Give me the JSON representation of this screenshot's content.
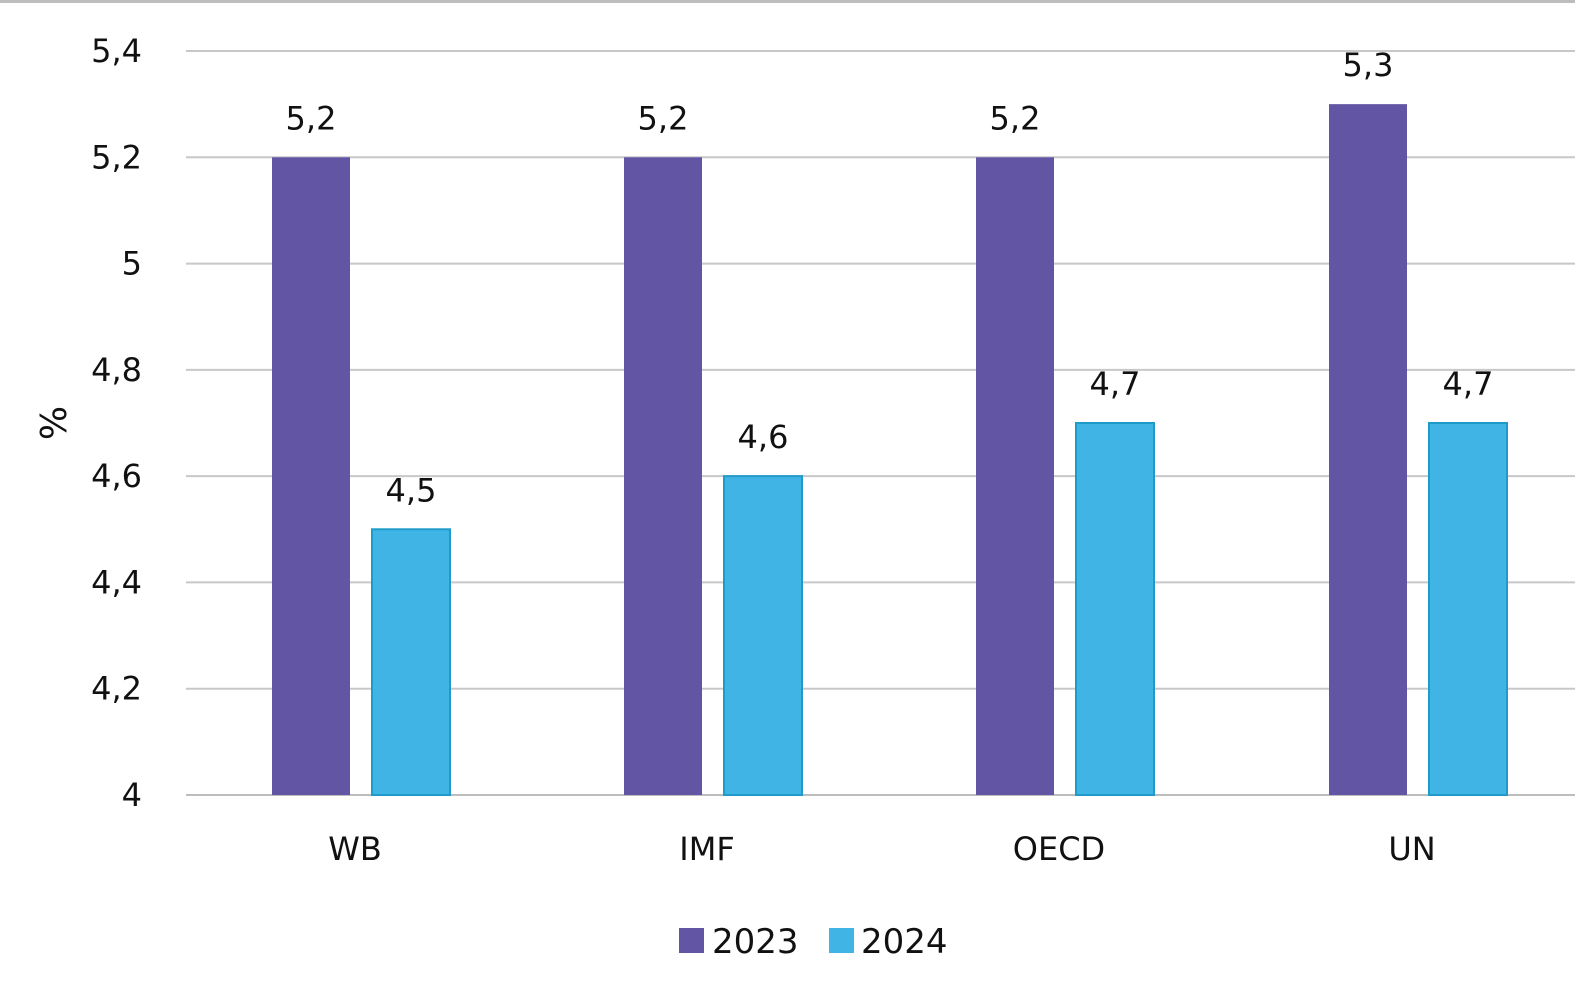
{
  "chart_data": {
    "type": "bar",
    "title": "",
    "xlabel": "",
    "ylabel": "%",
    "ylim": [
      4,
      5.4
    ],
    "yticks": [
      4,
      4.2,
      4.4,
      4.6,
      4.8,
      5,
      5.2,
      5.4
    ],
    "ytick_labels": [
      "4",
      "4,2",
      "4,4",
      "4,6",
      "4,8",
      "5",
      "5,2",
      "5,4"
    ],
    "categories": [
      "WB",
      "IMF",
      "OECD",
      "UN"
    ],
    "series": [
      {
        "name": "2023",
        "color": "#6155a4",
        "values": [
          5.2,
          5.2,
          5.2,
          5.3
        ],
        "labels": [
          "5,2",
          "5,2",
          "5,2",
          "5,3"
        ]
      },
      {
        "name": "2024",
        "color": "#41b4e6",
        "values": [
          4.5,
          4.6,
          4.7,
          4.7
        ],
        "labels": [
          "4,5",
          "4,6",
          "4,7",
          "4,7"
        ]
      }
    ],
    "legend_position": "bottom",
    "grid": true
  }
}
